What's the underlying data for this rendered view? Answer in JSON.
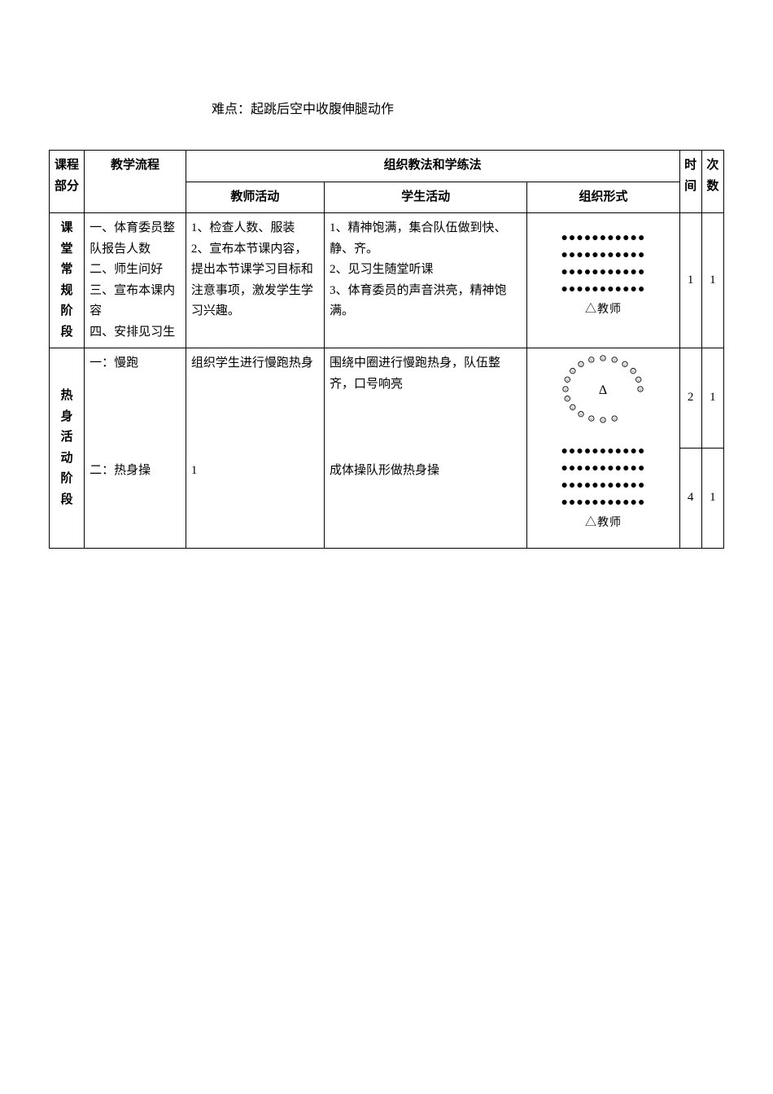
{
  "difficulty_label": "难点：起跳后空中收腹伸腿动作",
  "headers": {
    "section": "课程部分",
    "flow": "教学流程",
    "methods": "组织教法和学练法",
    "teacher": "教师活动",
    "student": "学生活动",
    "org": "组织形式",
    "time": "时间",
    "count": "次数"
  },
  "row1": {
    "section_chars": [
      "课",
      "堂",
      "常",
      "规",
      "阶",
      "段"
    ],
    "flow": "一、体育委员整队报告人数\n二、师生问好\n三、宣布本课内容\n四、安排见习生",
    "teacher": "1、检查人数、服装\n2、宣布本节课内容，提出本节课学习目标和注意事项，激发学生学习兴趣。",
    "student": "1、精神饱满，集合队伍做到快、静、齐。\n2、见习生随堂听课\n3、体育委员的声音洪亮，精神饱满。",
    "org_teacher": "△教师",
    "time": "1",
    "count": "1"
  },
  "row2": {
    "section_chars": [
      "热",
      "身",
      "活",
      "动",
      "阶",
      "段"
    ],
    "flow1": "一：慢跑",
    "flow2": "二：热身操",
    "teacher1": "组织学生进行慢跑热身",
    "teacher2": "1",
    "student1": "围绕中圈进行慢跑热身，队伍整齐，口号响亮",
    "student2": "成体操队形做热身操",
    "org_teacher": "△教师",
    "time1": "2",
    "count1": "1",
    "time2": "4",
    "count2": "1"
  },
  "dots_line": "●●●●●●●●●●●",
  "circle_symbol": "Δ",
  "colors": {
    "border": "#000000",
    "background": "#ffffff",
    "text": "#000000"
  }
}
